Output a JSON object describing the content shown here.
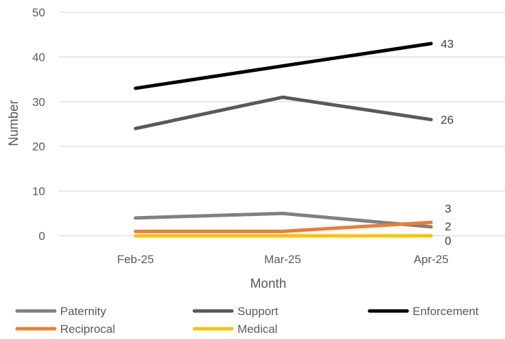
{
  "chart_data": {
    "type": "line",
    "xlabel": "Month",
    "ylabel": "Number",
    "categories": [
      "Feb-25",
      "Mar-25",
      "Apr-25"
    ],
    "ylim": [
      0,
      50
    ],
    "yticks": [
      0,
      10,
      20,
      30,
      40,
      50
    ],
    "grid": true,
    "legend_position": "bottom",
    "series": [
      {
        "name": "Paternity",
        "values": [
          4,
          5,
          2
        ],
        "color": "#808080",
        "label_last": true
      },
      {
        "name": "Support",
        "values": [
          24,
          31,
          26
        ],
        "color": "#595959",
        "label_last": true
      },
      {
        "name": "Enforcement",
        "values": [
          33,
          38,
          43
        ],
        "color": "#000000",
        "label_last": true
      },
      {
        "name": "Reciprocal",
        "values": [
          1,
          1,
          3
        ],
        "color": "#ED7D31",
        "label_last": true
      },
      {
        "name": "Medical",
        "values": [
          0,
          0,
          0
        ],
        "color": "#FFC000",
        "label_last": true
      }
    ],
    "data_labels": [
      "43",
      "26",
      "3",
      "2",
      "0"
    ]
  }
}
